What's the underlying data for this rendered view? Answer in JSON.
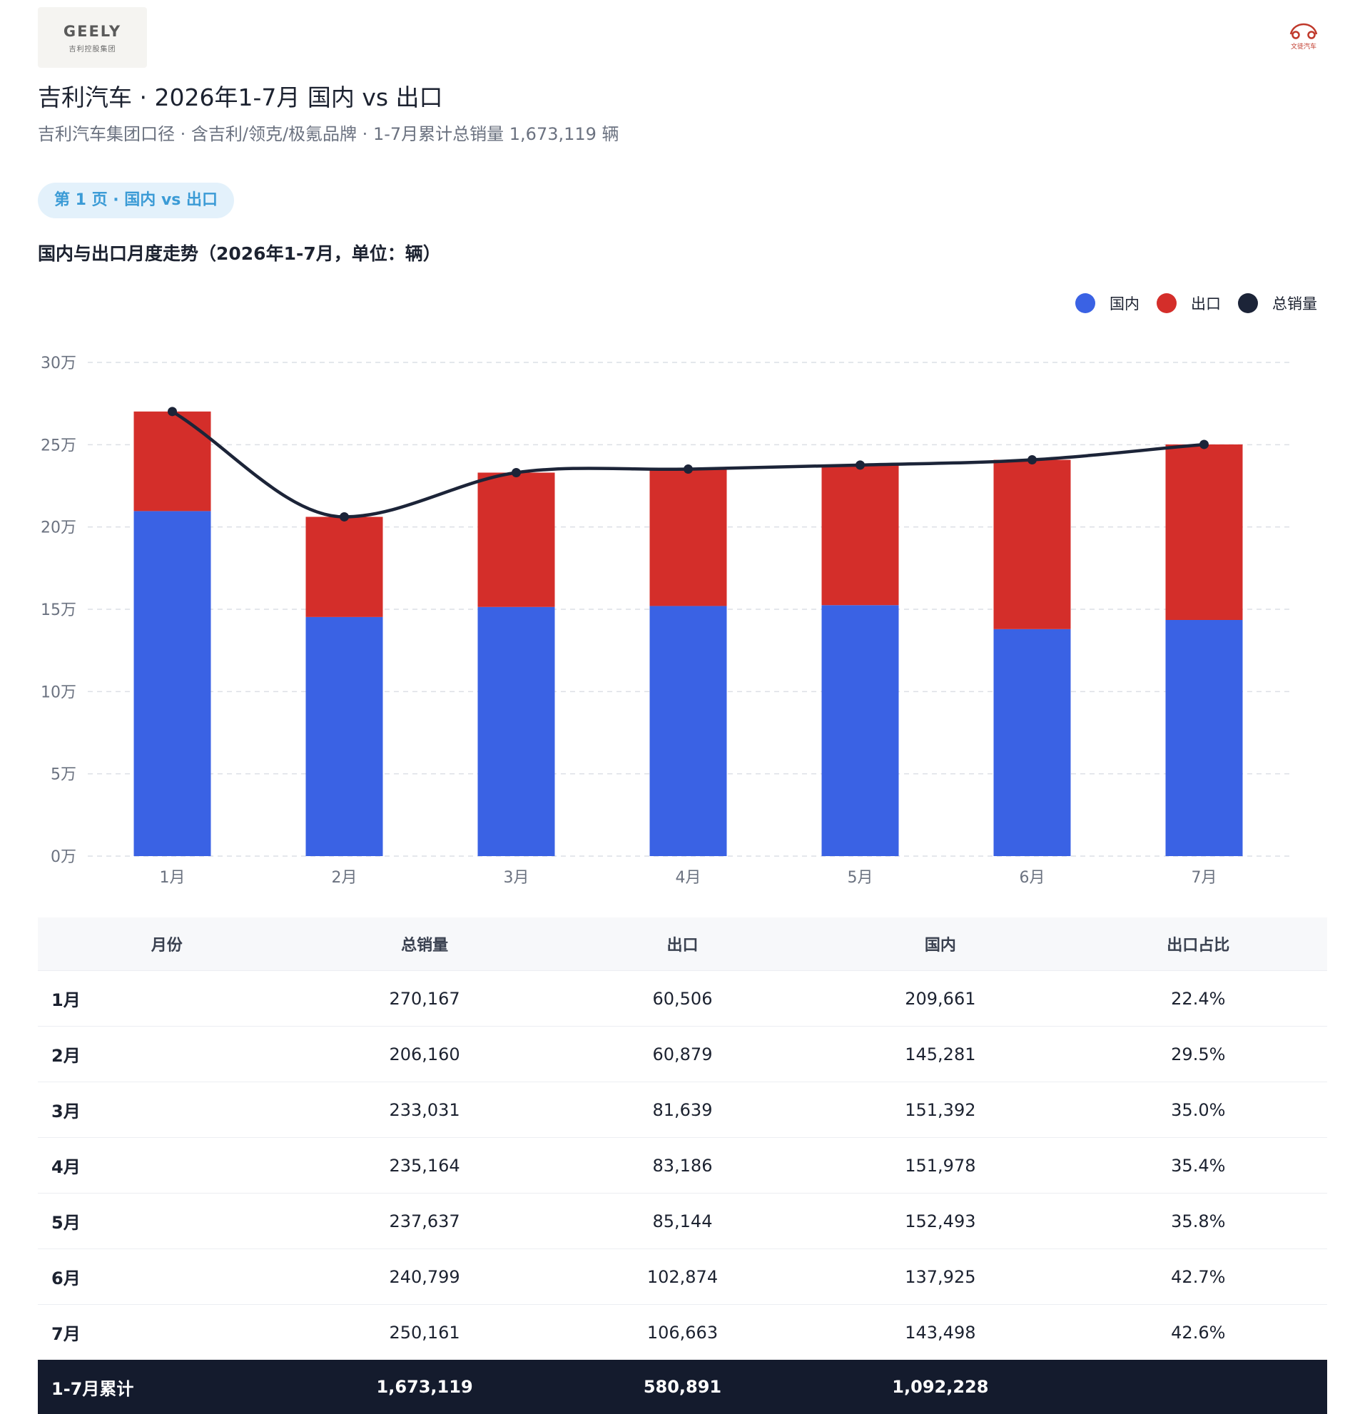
{
  "brand": {
    "logo_text": "GEELY",
    "logo_subtext": "吉利控股集团",
    "source_logo_text": "文徒汽车"
  },
  "header": {
    "title": "吉利汽车 · 2026年1-7月 国内 vs 出口",
    "subtitle": "吉利汽车集团口径 · 含吉利/领克/极氪品牌 · 1-7月累计总销量 1,673,119 辆",
    "page_pill": "第 1 页 · 国内 vs 出口"
  },
  "legend": [
    {
      "label": "国内",
      "color": "#3a62e4"
    },
    {
      "label": "出口",
      "color": "#d42e2a"
    },
    {
      "label": "总销量",
      "color": "#1c2438"
    }
  ],
  "chart_data": {
    "type": "bar",
    "stacked": true,
    "title": "国内与出口月度走势（2026年1-7月，单位：辆）",
    "categories": [
      "1月",
      "2月",
      "3月",
      "4月",
      "5月",
      "6月",
      "7月"
    ],
    "series": [
      {
        "name": "国内",
        "type": "bar",
        "color": "#3a62e4",
        "values": [
          209661,
          145281,
          151392,
          151978,
          152493,
          137925,
          143498
        ]
      },
      {
        "name": "出口",
        "type": "bar",
        "color": "#d42e2a",
        "values": [
          60506,
          60879,
          81639,
          83186,
          85144,
          102874,
          106663
        ]
      },
      {
        "name": "总销量",
        "type": "line",
        "color": "#1c2438",
        "values": [
          270167,
          206160,
          233031,
          235164,
          237637,
          240799,
          250161
        ]
      }
    ],
    "yticks": [
      {
        "value": 0,
        "label": "0万"
      },
      {
        "value": 50000,
        "label": "5万"
      },
      {
        "value": 100000,
        "label": "10万"
      },
      {
        "value": 150000,
        "label": "15万"
      },
      {
        "value": 200000,
        "label": "20万"
      },
      {
        "value": 250000,
        "label": "25万"
      },
      {
        "value": 300000,
        "label": "30万"
      }
    ],
    "ylim": [
      0,
      300000
    ],
    "grid": true,
    "legend_position": "top-right"
  },
  "table": {
    "headers": [
      "月份",
      "总销量",
      "出口",
      "国内",
      "出口占比"
    ],
    "rows": [
      [
        "1月",
        "270,167",
        "60,506",
        "209,661",
        "22.4%"
      ],
      [
        "2月",
        "206,160",
        "60,879",
        "145,281",
        "29.5%"
      ],
      [
        "3月",
        "233,031",
        "81,639",
        "151,392",
        "35.0%"
      ],
      [
        "4月",
        "235,164",
        "83,186",
        "151,978",
        "35.4%"
      ],
      [
        "5月",
        "237,637",
        "85,144",
        "152,493",
        "35.8%"
      ],
      [
        "6月",
        "240,799",
        "102,874",
        "137,925",
        "42.7%"
      ],
      [
        "7月",
        "250,161",
        "106,663",
        "143,498",
        "42.6%"
      ]
    ],
    "total_row": [
      "1-7月累计",
      "1,673,119",
      "580,891",
      "1,092,228",
      ""
    ]
  }
}
